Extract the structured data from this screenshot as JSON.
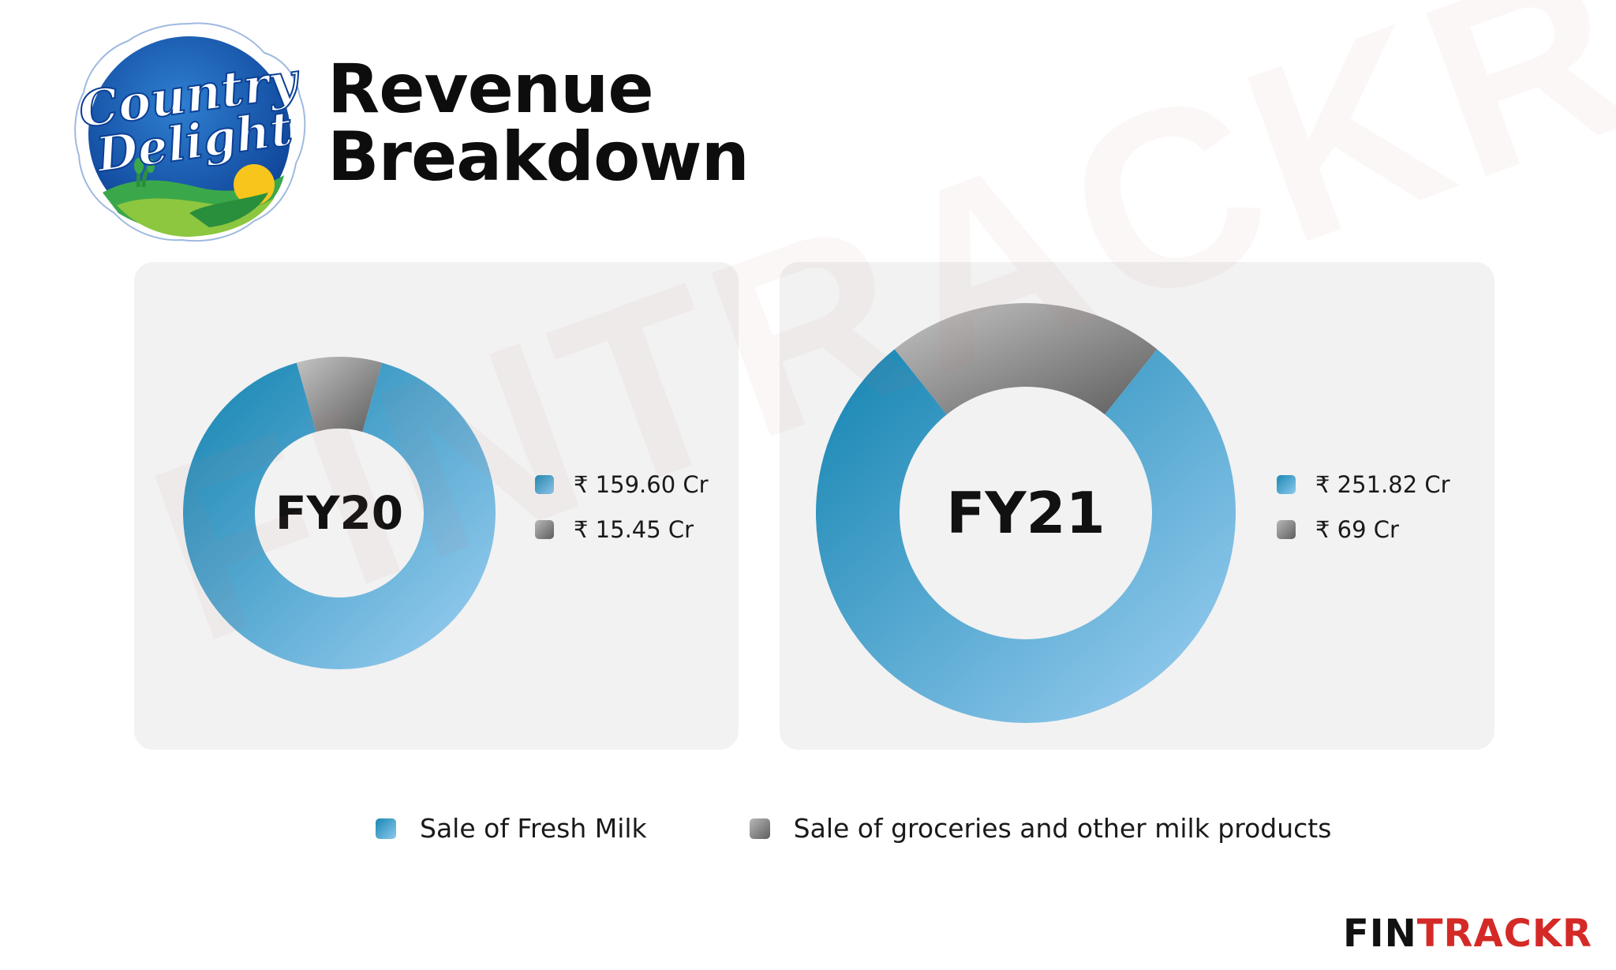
{
  "header": {
    "logo_text_line1": "Country",
    "logo_text_line2": "Delight",
    "title_line1": "Revenue",
    "title_line2": "Breakdown"
  },
  "watermark_text": "FINTRACKR",
  "brand": {
    "part_a": "FIN",
    "part_b": "TRACKR"
  },
  "legend": {
    "fresh_milk": "Sale of Fresh Milk",
    "groceries": "Sale of groceries and other milk products"
  },
  "colors": {
    "fresh_milk_dark": "#1384b1",
    "fresh_milk_light": "#9fd0f3",
    "groceries_dark": "#5e5e5e",
    "groceries_light": "#c4c4c4",
    "panel_bg": "#f2f2f2",
    "brand_red": "#d42a27"
  },
  "chart_data": [
    {
      "type": "donut",
      "center_label": "FY20",
      "series": [
        {
          "name": "Sale of Fresh Milk",
          "value": 159.6,
          "label": "₹ 159.60 Cr"
        },
        {
          "name": "Sale of groceries and other milk products",
          "value": 15.45,
          "label": "₹ 15.45 Cr"
        }
      ],
      "unit": "Cr"
    },
    {
      "type": "donut",
      "center_label": "FY21",
      "series": [
        {
          "name": "Sale of Fresh Milk",
          "value": 251.82,
          "label": "₹ 251.82 Cr"
        },
        {
          "name": "Sale of groceries and other milk products",
          "value": 69,
          "label": "₹ 69 Cr"
        }
      ],
      "unit": "Cr"
    }
  ]
}
